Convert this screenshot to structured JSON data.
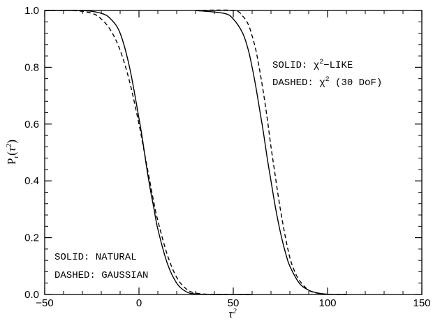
{
  "chart_data": {
    "type": "line",
    "xlabel": "τ²",
    "ylabel": "P_r(τ²)",
    "xlim": [
      -50,
      150
    ],
    "ylim": [
      0,
      1
    ],
    "xticks": [
      -50,
      0,
      50,
      100,
      150
    ],
    "xtick_labels": [
      "−50",
      "0",
      "50",
      "100",
      "150"
    ],
    "yticks": [
      0,
      0.2,
      0.4,
      0.6,
      0.8,
      1
    ],
    "ytick_labels": [
      "0.0",
      "0.2",
      "0.4",
      "0.6",
      "0.8",
      "1.0"
    ],
    "grid": false,
    "annotations": [
      {
        "lines": [
          "SOLID: NATURAL",
          "DASHED: GAUSSIAN"
        ],
        "position": "bottom-left"
      },
      {
        "lines": [
          "SOLID: χ²-LIKE",
          "DASHED: χ² (30 DoF)"
        ],
        "position": "top-right"
      }
    ],
    "series": [
      {
        "style": "solid",
        "x": [
          -50,
          -30,
          -20,
          -15,
          -10,
          -5,
          0,
          2,
          4,
          6,
          8,
          10,
          15,
          20,
          25,
          30,
          40,
          60
        ],
        "y": [
          1.0,
          1.0,
          0.99,
          0.97,
          0.92,
          0.8,
          0.62,
          0.54,
          0.45,
          0.37,
          0.3,
          0.23,
          0.11,
          0.04,
          0.01,
          0.002,
          0,
          0
        ]
      },
      {
        "style": "dashed",
        "x": [
          -50,
          -35,
          -25,
          -20,
          -15,
          -10,
          -5,
          0,
          2,
          4,
          6,
          8,
          10,
          15,
          20,
          25,
          30,
          40,
          60
        ],
        "y": [
          1.0,
          1.0,
          0.99,
          0.97,
          0.93,
          0.86,
          0.75,
          0.6,
          0.53,
          0.46,
          0.39,
          0.32,
          0.26,
          0.14,
          0.06,
          0.02,
          0.005,
          0,
          0
        ]
      },
      {
        "style": "solid",
        "x": [
          30,
          45,
          50,
          55,
          58,
          60,
          62,
          64,
          66,
          68,
          70,
          72,
          74,
          76,
          78,
          80,
          85,
          90,
          95,
          100,
          110
        ],
        "y": [
          1.0,
          0.99,
          0.97,
          0.92,
          0.86,
          0.8,
          0.73,
          0.65,
          0.57,
          0.48,
          0.4,
          0.32,
          0.25,
          0.19,
          0.14,
          0.1,
          0.04,
          0.015,
          0.005,
          0.001,
          0
        ]
      },
      {
        "style": "dashed",
        "x": [
          30,
          50,
          55,
          58,
          60,
          62,
          64,
          66,
          68,
          70,
          72,
          74,
          76,
          78,
          80,
          82,
          85,
          90,
          95,
          100,
          110
        ],
        "y": [
          1.0,
          1.0,
          0.98,
          0.95,
          0.91,
          0.86,
          0.79,
          0.71,
          0.62,
          0.52,
          0.43,
          0.34,
          0.26,
          0.19,
          0.13,
          0.09,
          0.05,
          0.015,
          0.004,
          0.001,
          0
        ]
      }
    ]
  }
}
